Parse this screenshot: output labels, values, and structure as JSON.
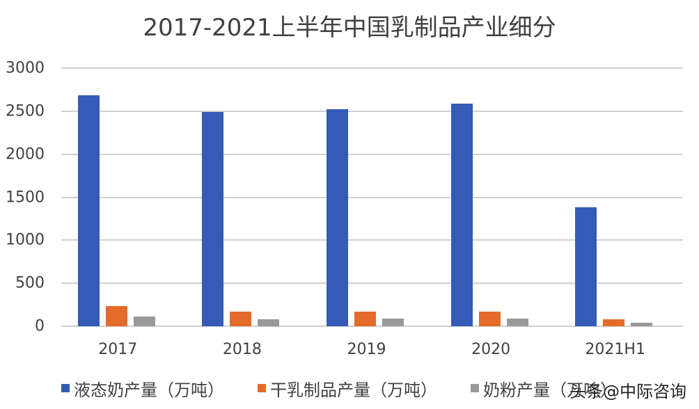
{
  "title": "2017-2021上半年中国乳制品产业细分",
  "watermark": "头条@中际咨询",
  "colors": {
    "liquid_milk": "#355BB7",
    "dry_dairy": "#E46B2A",
    "milk_powder": "#999999",
    "grid": "#D0D0D0",
    "text": "#404040"
  },
  "y_ticks": [
    "3000",
    "2500",
    "2000",
    "1500",
    "1000",
    "500",
    "0"
  ],
  "x_ticks": [
    "2017",
    "2018",
    "2019",
    "2020",
    "2021H1"
  ],
  "legend": [
    {
      "label": "液态奶产量（万吨）",
      "color": "#355BB7"
    },
    {
      "label": "干乳制品产量（万吨）",
      "color": "#E46B2A"
    },
    {
      "label": "奶粉产量（万吨）",
      "color": "#999999"
    }
  ],
  "chart_data": {
    "type": "bar",
    "title": "2017-2021上半年中国乳制品产业细分",
    "categories": [
      "2017",
      "2018",
      "2019",
      "2020",
      "2021H1"
    ],
    "series": [
      {
        "name": "液态奶产量（万吨）",
        "color": "#355BB7",
        "values": [
          2685,
          2490,
          2520,
          2590,
          1385
        ]
      },
      {
        "name": "干乳制品产量（万吨）",
        "color": "#E46B2A",
        "values": [
          235,
          170,
          170,
          170,
          80
        ]
      },
      {
        "name": "奶粉产量（万吨）",
        "color": "#999999",
        "values": [
          113,
          81,
          90,
          90,
          40
        ]
      }
    ],
    "xlabel": "",
    "ylabel": "",
    "ylim": [
      0,
      3000
    ],
    "yticks": [
      0,
      500,
      1000,
      1500,
      2000,
      2500,
      3000
    ],
    "grid": true,
    "legend_position": "bottom"
  }
}
